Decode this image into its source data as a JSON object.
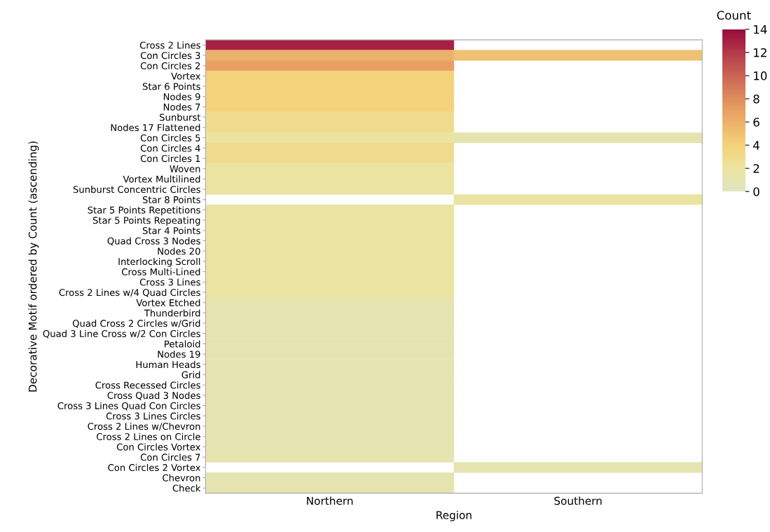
{
  "chart_data": {
    "type": "heatmap",
    "xlabel": "Region",
    "ylabel": "Decorative Motif ordered by Count (ascending)",
    "clabel": "Count",
    "categories": [
      "Northern",
      "Southern"
    ],
    "y_categories": [
      "Cross 2 Lines",
      "Con Circles 3",
      "Con Circles 2",
      "Vortex",
      "Star 6 Points",
      "Nodes 9",
      "Nodes 7",
      "Sunburst",
      "Nodes 17 Flattened",
      "Con Circles 5",
      "Con Circles 4",
      "Con Circles 1",
      "Woven",
      "Vortex Multilined",
      "Sunburst Concentric Circles",
      "Star 8 Points",
      "Star 5 Points Repetitions",
      "Star 5 Points Repeating",
      "Star 4 Points",
      "Quad Cross 3 Nodes",
      "Nodes 20",
      "Interlocking Scroll",
      "Cross Multi-Lined",
      "Cross 3 Lines",
      "Cross 2 Lines w/4 Quad Circles",
      "Vortex Etched",
      "Thunderbird",
      "Quad Cross 2 Circles w/Grid",
      "Quad 3 Line Cross w/2 Con Circles",
      "Petaloid",
      "Nodes 19",
      "Human Heads",
      "Grid",
      "Cross Recessed Circles",
      "Cross Quad 3 Nodes",
      "Cross 3 Lines Quad Con Circles",
      "Cross 3 Lines Circles",
      "Cross 2 Lines w/Chevron",
      "Cross 2 Lines on Circle",
      "Con Circles Vortex",
      "Con Circles 7",
      "Con Circles 2 Vortex",
      "Chevron",
      "Check"
    ],
    "cells": [
      [
        13,
        null
      ],
      [
        6,
        5
      ],
      [
        7,
        null
      ],
      [
        4,
        null
      ],
      [
        4,
        null
      ],
      [
        4,
        null
      ],
      [
        4,
        null
      ],
      [
        3,
        null
      ],
      [
        3,
        null
      ],
      [
        2,
        1
      ],
      [
        3,
        null
      ],
      [
        3,
        null
      ],
      [
        2,
        null
      ],
      [
        2,
        null
      ],
      [
        2,
        null
      ],
      [
        null,
        2
      ],
      [
        2,
        null
      ],
      [
        2,
        null
      ],
      [
        2,
        null
      ],
      [
        2,
        null
      ],
      [
        2,
        null
      ],
      [
        2,
        null
      ],
      [
        2,
        null
      ],
      [
        2,
        null
      ],
      [
        2,
        null
      ],
      [
        1,
        null
      ],
      [
        1,
        null
      ],
      [
        1,
        null
      ],
      [
        1,
        null
      ],
      [
        1,
        null
      ],
      [
        1,
        null
      ],
      [
        1,
        null
      ],
      [
        1,
        null
      ],
      [
        1,
        null
      ],
      [
        1,
        null
      ],
      [
        1,
        null
      ],
      [
        1,
        null
      ],
      [
        1,
        null
      ],
      [
        1,
        null
      ],
      [
        1,
        null
      ],
      [
        1,
        null
      ],
      [
        null,
        1
      ],
      [
        1,
        null
      ],
      [
        1,
        null
      ]
    ],
    "clim": [
      0,
      14
    ],
    "cticks": [
      0,
      2,
      4,
      6,
      8,
      10,
      12,
      14
    ],
    "grid": false
  }
}
